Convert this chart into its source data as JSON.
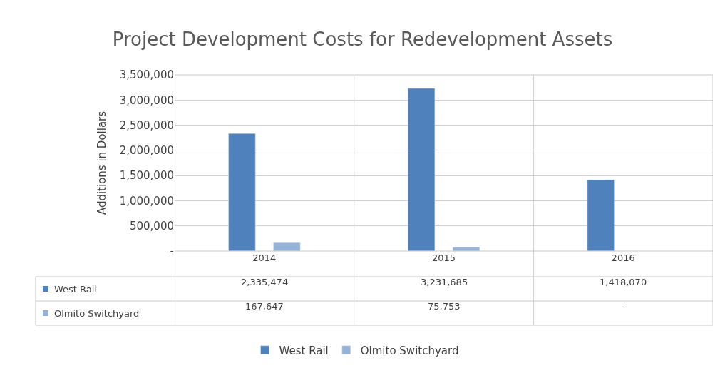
{
  "chart_data": {
    "type": "bar",
    "title": "Project Development Costs for Redevelopment Assets",
    "ylabel": "Additions in Dollars",
    "categories": [
      "2014",
      "2015",
      "2016"
    ],
    "series": [
      {
        "name": "West Rail",
        "color": "#4f81bd",
        "values": [
          2335474,
          3231685,
          1418070
        ],
        "value_labels": [
          "2,335,474",
          "3,231,685",
          "1,418,070"
        ]
      },
      {
        "name": "Olmito Switchyard",
        "color": "#95b3d7",
        "values": [
          167647,
          75753,
          null
        ],
        "value_labels": [
          "167,647",
          "75,753",
          "-"
        ]
      }
    ],
    "ylim": [
      0,
      3500000
    ],
    "yticks": [
      {
        "value": 0,
        "label": "-"
      },
      {
        "value": 500000,
        "label": "500,000"
      },
      {
        "value": 1000000,
        "label": "1,000,000"
      },
      {
        "value": 1500000,
        "label": "1,500,000"
      },
      {
        "value": 2000000,
        "label": "2,000,000"
      },
      {
        "value": 2500000,
        "label": "2,500,000"
      },
      {
        "value": 3000000,
        "label": "3,000,000"
      },
      {
        "value": 3500000,
        "label": "3,500,000"
      }
    ],
    "grid": "y",
    "legend": "bottom"
  }
}
